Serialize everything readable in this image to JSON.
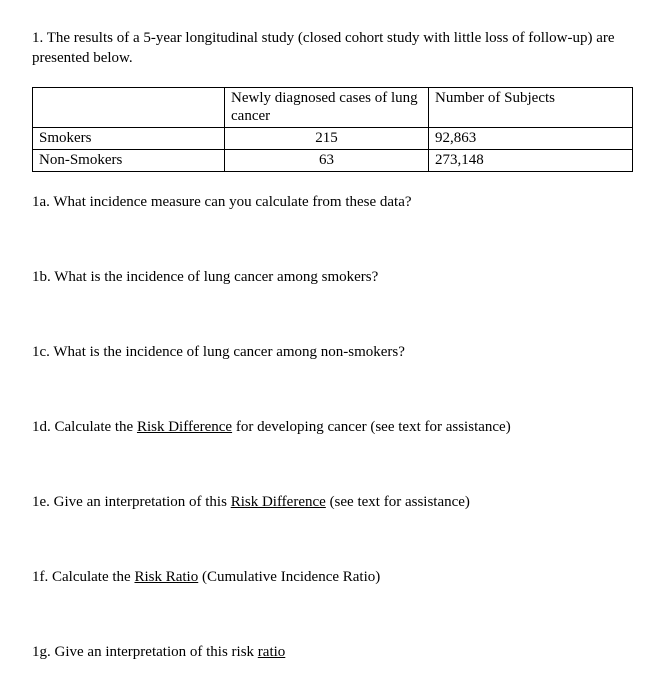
{
  "intro": "1.  The results of a 5-year longitudinal study (closed cohort study with little loss of follow-up) are presented below.",
  "table": {
    "headers": {
      "row_label": "",
      "cases": "Newly diagnosed cases of lung cancer",
      "subjects": "Number of Subjects"
    },
    "rows": [
      {
        "label": "Smokers",
        "cases": "215",
        "subjects": "92,863"
      },
      {
        "label": "Non-Smokers",
        "cases": "63",
        "subjects": "273,148"
      }
    ]
  },
  "questions": {
    "a": "1a. What incidence measure can you calculate from these data?",
    "b": "1b. What is the incidence of lung cancer among smokers?",
    "c": "1c. What is the incidence of lung cancer among non-smokers?",
    "d_pre": "1d. Calculate the ",
    "d_u": "Risk Difference",
    "d_post": " for developing cancer (see text for assistance)",
    "e_pre": "1e. Give an interpretation of this ",
    "e_u": "Risk Difference",
    "e_post": " (see text for assistance)",
    "f_pre": "1f. Calculate the ",
    "f_u": "Risk Ratio",
    "f_post": " (Cumulative Incidence Ratio)",
    "g_pre": "1g. Give an interpretation of this risk ",
    "g_u": "ratio",
    "g_post": ""
  }
}
